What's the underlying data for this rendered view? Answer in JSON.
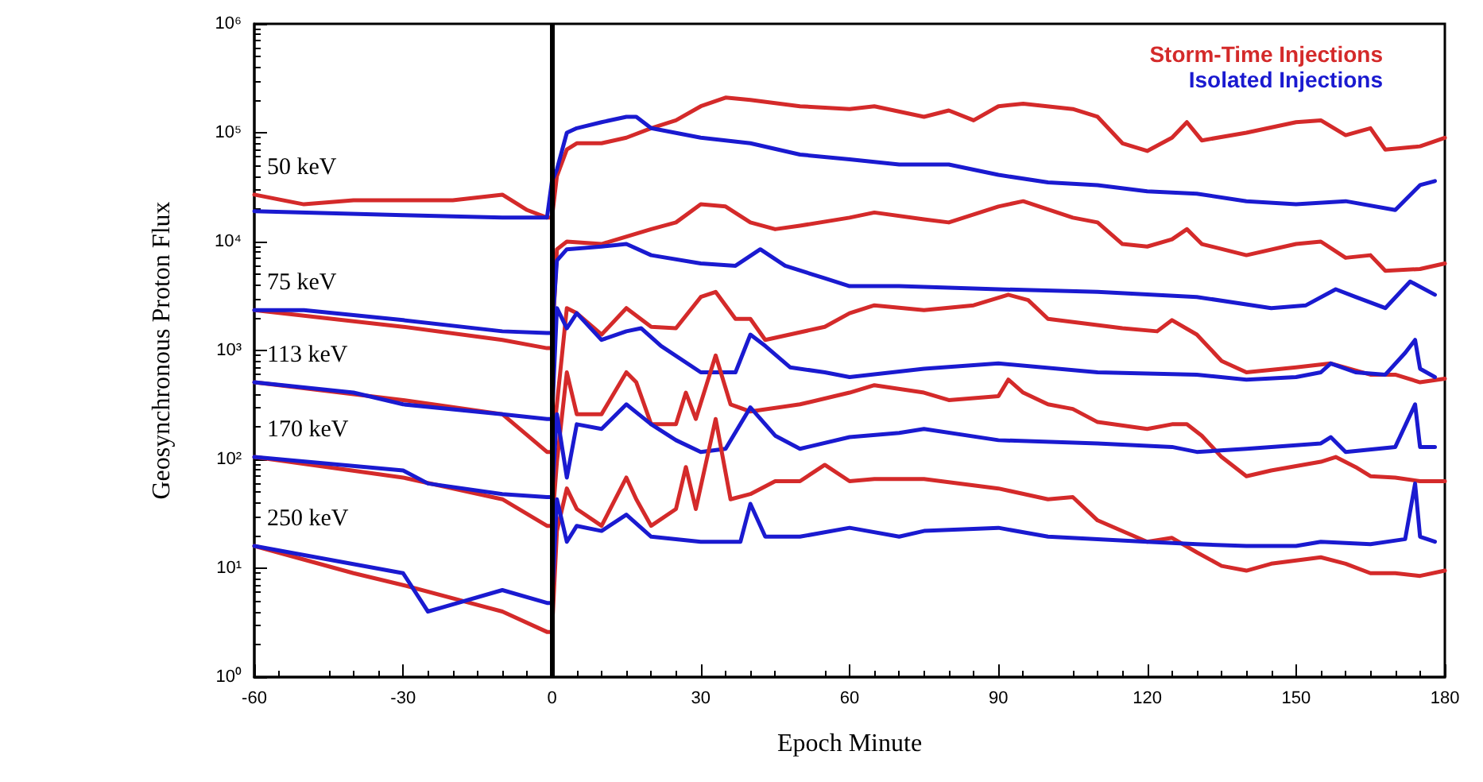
{
  "chart_data": {
    "type": "line",
    "xlabel": "Epoch Minute",
    "ylabel": "Geosynchronous Proton Flux",
    "log": "y",
    "grid": false,
    "legend": "top right",
    "marker": "none",
    "line_style": "solid",
    "xlim": [
      -60,
      180
    ],
    "xticks": [
      -60,
      -30,
      0,
      30,
      60,
      90,
      120,
      150,
      180
    ],
    "ylim": [
      1,
      1000000
    ],
    "yticks": [
      {
        "value": 1,
        "label": "10⁰"
      },
      {
        "value": 10,
        "label": "10¹"
      },
      {
        "value": 100,
        "label": "10²"
      },
      {
        "value": 1000,
        "label": "10³"
      },
      {
        "value": 10000,
        "label": "10⁴"
      },
      {
        "value": 100000,
        "label": "10⁵"
      },
      {
        "value": 1000000,
        "label": "10⁶"
      }
    ],
    "ref_lines": [
      {
        "axis": "x",
        "value": 0,
        "label": null,
        "color": "#000000"
      }
    ],
    "annotations": [
      "50 keV",
      "75 keV",
      "113 keV",
      "170 keV",
      "250 keV"
    ],
    "series": [
      {
        "name": "Storm-Time Injections",
        "color": "#d42a2a",
        "x": [
          -60,
          -50,
          -40,
          -30,
          -20,
          -10,
          -5,
          -1,
          0,
          1,
          3,
          5,
          10,
          15,
          20,
          25,
          30,
          35,
          40,
          50,
          60,
          65,
          75,
          80,
          85,
          90,
          95,
          105,
          110,
          115,
          120,
          125,
          128,
          131,
          140,
          150,
          155,
          160,
          165,
          168,
          175,
          180
        ],
        "values": [
          27000,
          22000,
          24000,
          24000,
          24000,
          27000,
          19500,
          16600,
          16600,
          40000,
          70000,
          80000,
          80000,
          90000,
          110000,
          130000,
          175000,
          210000,
          200000,
          175000,
          165000,
          175000,
          140000,
          160000,
          130000,
          175000,
          185000,
          165000,
          140000,
          80000,
          68000,
          90000,
          125000,
          85000,
          100000,
          125000,
          130000,
          95000,
          110000,
          70000,
          75000,
          90000
        ]
      },
      {
        "name": "Isolated Injections",
        "color": "#1a1ad0",
        "x": [
          -60,
          -30,
          -10,
          -1,
          0,
          1,
          3,
          5,
          10,
          15,
          17,
          20,
          30,
          40,
          50,
          60,
          70,
          80,
          90,
          100,
          110,
          120,
          130,
          140,
          150,
          160,
          170,
          175,
          178
        ],
        "values": [
          19000,
          17500,
          16600,
          16600,
          36000,
          46000,
          100000,
          110000,
          125000,
          140000,
          140000,
          110000,
          90000,
          80000,
          63000,
          57000,
          51000,
          51000,
          41000,
          35000,
          33000,
          29000,
          27500,
          23500,
          22000,
          23500,
          19500,
          33000,
          36000
        ]
      },
      {
        "color": "#d42a2a",
        "x": [
          -60,
          -30,
          -10,
          -1,
          0,
          1,
          3,
          10,
          20,
          25,
          30,
          35,
          40,
          45,
          50,
          60,
          65,
          75,
          80,
          90,
          95,
          105,
          110,
          115,
          120,
          125,
          128,
          131,
          140,
          150,
          155,
          160,
          165,
          168,
          175,
          180
        ],
        "values": [
          2350,
          1650,
          1250,
          1050,
          1050,
          8500,
          10000,
          9500,
          13000,
          15000,
          22000,
          21000,
          15000,
          13000,
          14000,
          16600,
          18500,
          16000,
          15000,
          21000,
          23500,
          16600,
          15000,
          9500,
          9000,
          10500,
          13000,
          9500,
          7500,
          9500,
          10000,
          7100,
          7500,
          5400,
          5600,
          6300
        ]
      },
      {
        "color": "#1a1ad0",
        "x": [
          -60,
          -50,
          -30,
          -10,
          -1,
          0,
          1,
          3,
          10,
          15,
          20,
          30,
          37,
          42,
          47,
          55,
          60,
          70,
          90,
          110,
          130,
          145,
          152,
          158,
          162,
          168,
          173,
          178
        ],
        "values": [
          2350,
          2350,
          1900,
          1500,
          1450,
          1450,
          6700,
          8500,
          9000,
          9500,
          7500,
          6300,
          6000,
          8500,
          6000,
          4600,
          3900,
          3900,
          3650,
          3450,
          3100,
          2450,
          2600,
          3650,
          3100,
          2450,
          4300,
          3250
        ]
      },
      {
        "color": "#d42a2a",
        "x": [
          -60,
          -30,
          -10,
          -1,
          0,
          1,
          3,
          5,
          10,
          15,
          20,
          25,
          30,
          33,
          37,
          40,
          43,
          55,
          60,
          65,
          75,
          85,
          92,
          96,
          100,
          115,
          122,
          125,
          130,
          135,
          140,
          150,
          157,
          165,
          170,
          175,
          180
        ],
        "values": [
          510,
          350,
          260,
          117,
          117,
          320,
          2450,
          2200,
          1400,
          2450,
          1650,
          1600,
          3100,
          3450,
          1950,
          1950,
          1250,
          1650,
          2200,
          2600,
          2350,
          2600,
          3250,
          2900,
          1950,
          1600,
          1500,
          1900,
          1400,
          800,
          630,
          700,
          760,
          600,
          600,
          510,
          550
        ]
      },
      {
        "color": "#1a1ad0",
        "x": [
          -60,
          -40,
          -30,
          -10,
          -1,
          0,
          1,
          3,
          5,
          10,
          15,
          18,
          22,
          30,
          37,
          40,
          43,
          48,
          55,
          60,
          75,
          90,
          110,
          130,
          140,
          150,
          155,
          157,
          162,
          168,
          172,
          174,
          175,
          178
        ],
        "values": [
          510,
          410,
          320,
          260,
          235,
          235,
          2450,
          1600,
          2200,
          1250,
          1500,
          1600,
          1100,
          630,
          630,
          1400,
          1100,
          700,
          630,
          570,
          680,
          760,
          630,
          600,
          540,
          570,
          630,
          760,
          630,
          600,
          950,
          1250,
          680,
          570
        ]
      },
      {
        "color": "#d42a2a",
        "x": [
          -60,
          -30,
          -10,
          -1,
          0,
          1,
          3,
          5,
          10,
          15,
          17,
          20,
          25,
          27,
          29,
          33,
          36,
          40,
          50,
          60,
          65,
          75,
          80,
          90,
          92,
          95,
          100,
          105,
          110,
          120,
          125,
          128,
          131,
          135,
          140,
          145,
          155,
          158,
          162,
          165,
          170,
          175,
          180
        ],
        "values": [
          105,
          68,
          43,
          24.5,
          24.5,
          95,
          630,
          260,
          260,
          630,
          510,
          210,
          210,
          410,
          235,
          900,
          320,
          275,
          320,
          410,
          480,
          410,
          350,
          380,
          540,
          410,
          320,
          290,
          220,
          190,
          210,
          210,
          165,
          105,
          70,
          79,
          95,
          105,
          85,
          70,
          68,
          63,
          63
        ]
      },
      {
        "color": "#1a1ad0",
        "x": [
          -60,
          -30,
          -25,
          -10,
          -1,
          0,
          1,
          3,
          5,
          10,
          15,
          20,
          25,
          30,
          35,
          40,
          45,
          50,
          60,
          70,
          75,
          90,
          110,
          125,
          130,
          140,
          155,
          157,
          160,
          170,
          174,
          175,
          178
        ],
        "values": [
          105,
          79,
          60,
          48,
          45,
          45,
          260,
          68,
          210,
          190,
          320,
          210,
          150,
          117,
          125,
          300,
          165,
          125,
          160,
          175,
          190,
          150,
          140,
          130,
          117,
          125,
          140,
          160,
          117,
          130,
          320,
          130,
          130
        ]
      },
      {
        "color": "#d42a2a",
        "x": [
          -60,
          -40,
          -30,
          -10,
          -1,
          0,
          1,
          3,
          5,
          10,
          15,
          17,
          20,
          25,
          27,
          29,
          33,
          36,
          40,
          45,
          50,
          55,
          60,
          65,
          75,
          90,
          100,
          105,
          110,
          120,
          125,
          130,
          135,
          140,
          145,
          155,
          160,
          165,
          170,
          175,
          180
        ],
        "values": [
          16,
          9,
          7,
          4,
          2.6,
          2.6,
          22,
          54,
          35,
          24.5,
          68,
          43,
          24.5,
          35,
          85,
          35,
          235,
          43,
          48,
          63,
          63,
          89,
          63,
          66,
          66,
          54,
          43,
          45,
          27.5,
          17.5,
          19,
          14,
          10.5,
          9.5,
          11,
          12.6,
          11,
          9,
          9,
          8.5,
          9.5
        ]
      },
      {
        "color": "#1a1ad0",
        "x": [
          -60,
          -30,
          -25,
          -10,
          -1,
          0,
          1,
          3,
          5,
          10,
          15,
          20,
          30,
          38,
          40,
          43,
          50,
          60,
          70,
          75,
          90,
          100,
          120,
          130,
          140,
          150,
          155,
          165,
          172,
          174,
          175,
          178
        ],
        "values": [
          16,
          9,
          4,
          6.3,
          4.8,
          4.8,
          43,
          17.5,
          24.5,
          22,
          31,
          19.5,
          17.5,
          17.5,
          39,
          19.5,
          19.5,
          23.5,
          19.5,
          22,
          23.5,
          19.5,
          17.5,
          16.6,
          16,
          16,
          17.5,
          16.6,
          18.5,
          60,
          19.5,
          17.5
        ]
      }
    ]
  }
}
